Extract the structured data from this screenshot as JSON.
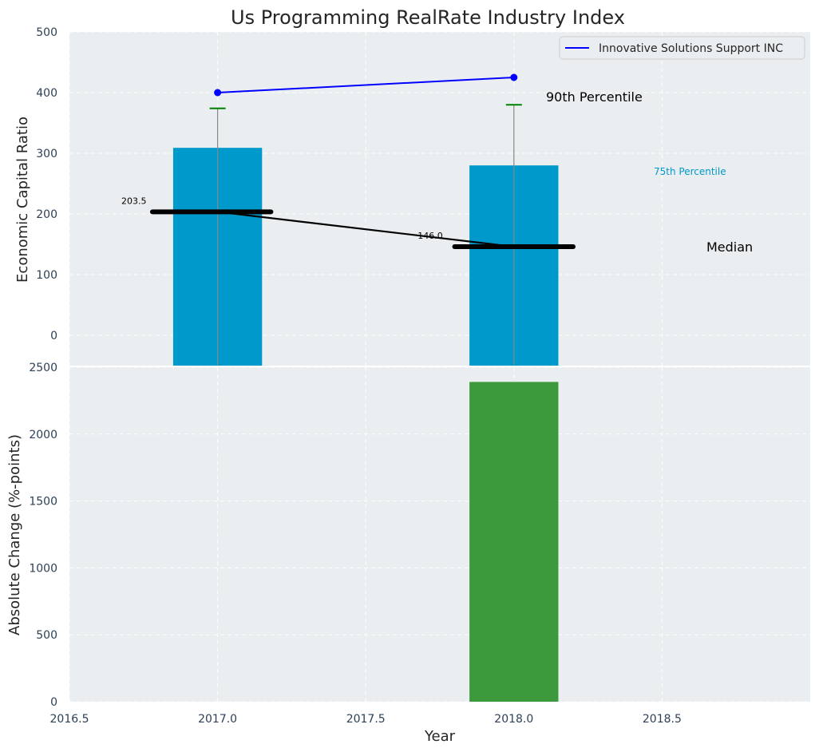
{
  "chart_data": [
    {
      "panel": "top",
      "type": "bar",
      "title": "Us Programming RealRate Industry Index",
      "xlabel": "",
      "ylabel": "Economic Capital Ratio",
      "ylim": [
        -50,
        500
      ],
      "yticks": [
        0,
        100,
        200,
        300,
        400,
        500
      ],
      "x": [
        2017,
        2018
      ],
      "grid": true,
      "colors": {
        "bar": "#0099cc",
        "whisker": "#888888",
        "cap": "#008000",
        "median": "#000000",
        "company": "#0000ff"
      },
      "bars": {
        "name": "75th Percentile",
        "values": [
          309,
          280
        ]
      },
      "p90": {
        "name": "90th Percentile",
        "values": [
          374,
          380
        ]
      },
      "median": {
        "name": "Median",
        "values": [
          203.5,
          146.0
        ],
        "labels": [
          "203.5",
          "146.0"
        ]
      },
      "company": {
        "name": "Innovative Solutions Support INC",
        "values": [
          400,
          425
        ]
      },
      "legend": {
        "placement": "top-right",
        "entries": [
          "Innovative Solutions Support INC"
        ]
      },
      "annotations": {
        "p90_label": "90th Percentile",
        "p75_label": "75th Percentile",
        "median_label": "Median"
      }
    },
    {
      "panel": "bottom",
      "type": "bar",
      "xlabel": "Year",
      "ylabel": "Absolute Change (%-points)",
      "ylim": [
        0,
        2500
      ],
      "yticks": [
        0,
        500,
        1000,
        1500,
        2000,
        2500
      ],
      "xlim": [
        2016.5,
        2019.0
      ],
      "xticks": [
        "2016.5",
        "2017.0",
        "2017.5",
        "2018.0",
        "2018.5"
      ],
      "xtick_values": [
        2016.5,
        2017.0,
        2017.5,
        2018.0,
        2018.5
      ],
      "categories": [
        2018
      ],
      "values": [
        2390
      ],
      "grid": true,
      "colors": {
        "bar": "#3c9a3c"
      }
    }
  ]
}
